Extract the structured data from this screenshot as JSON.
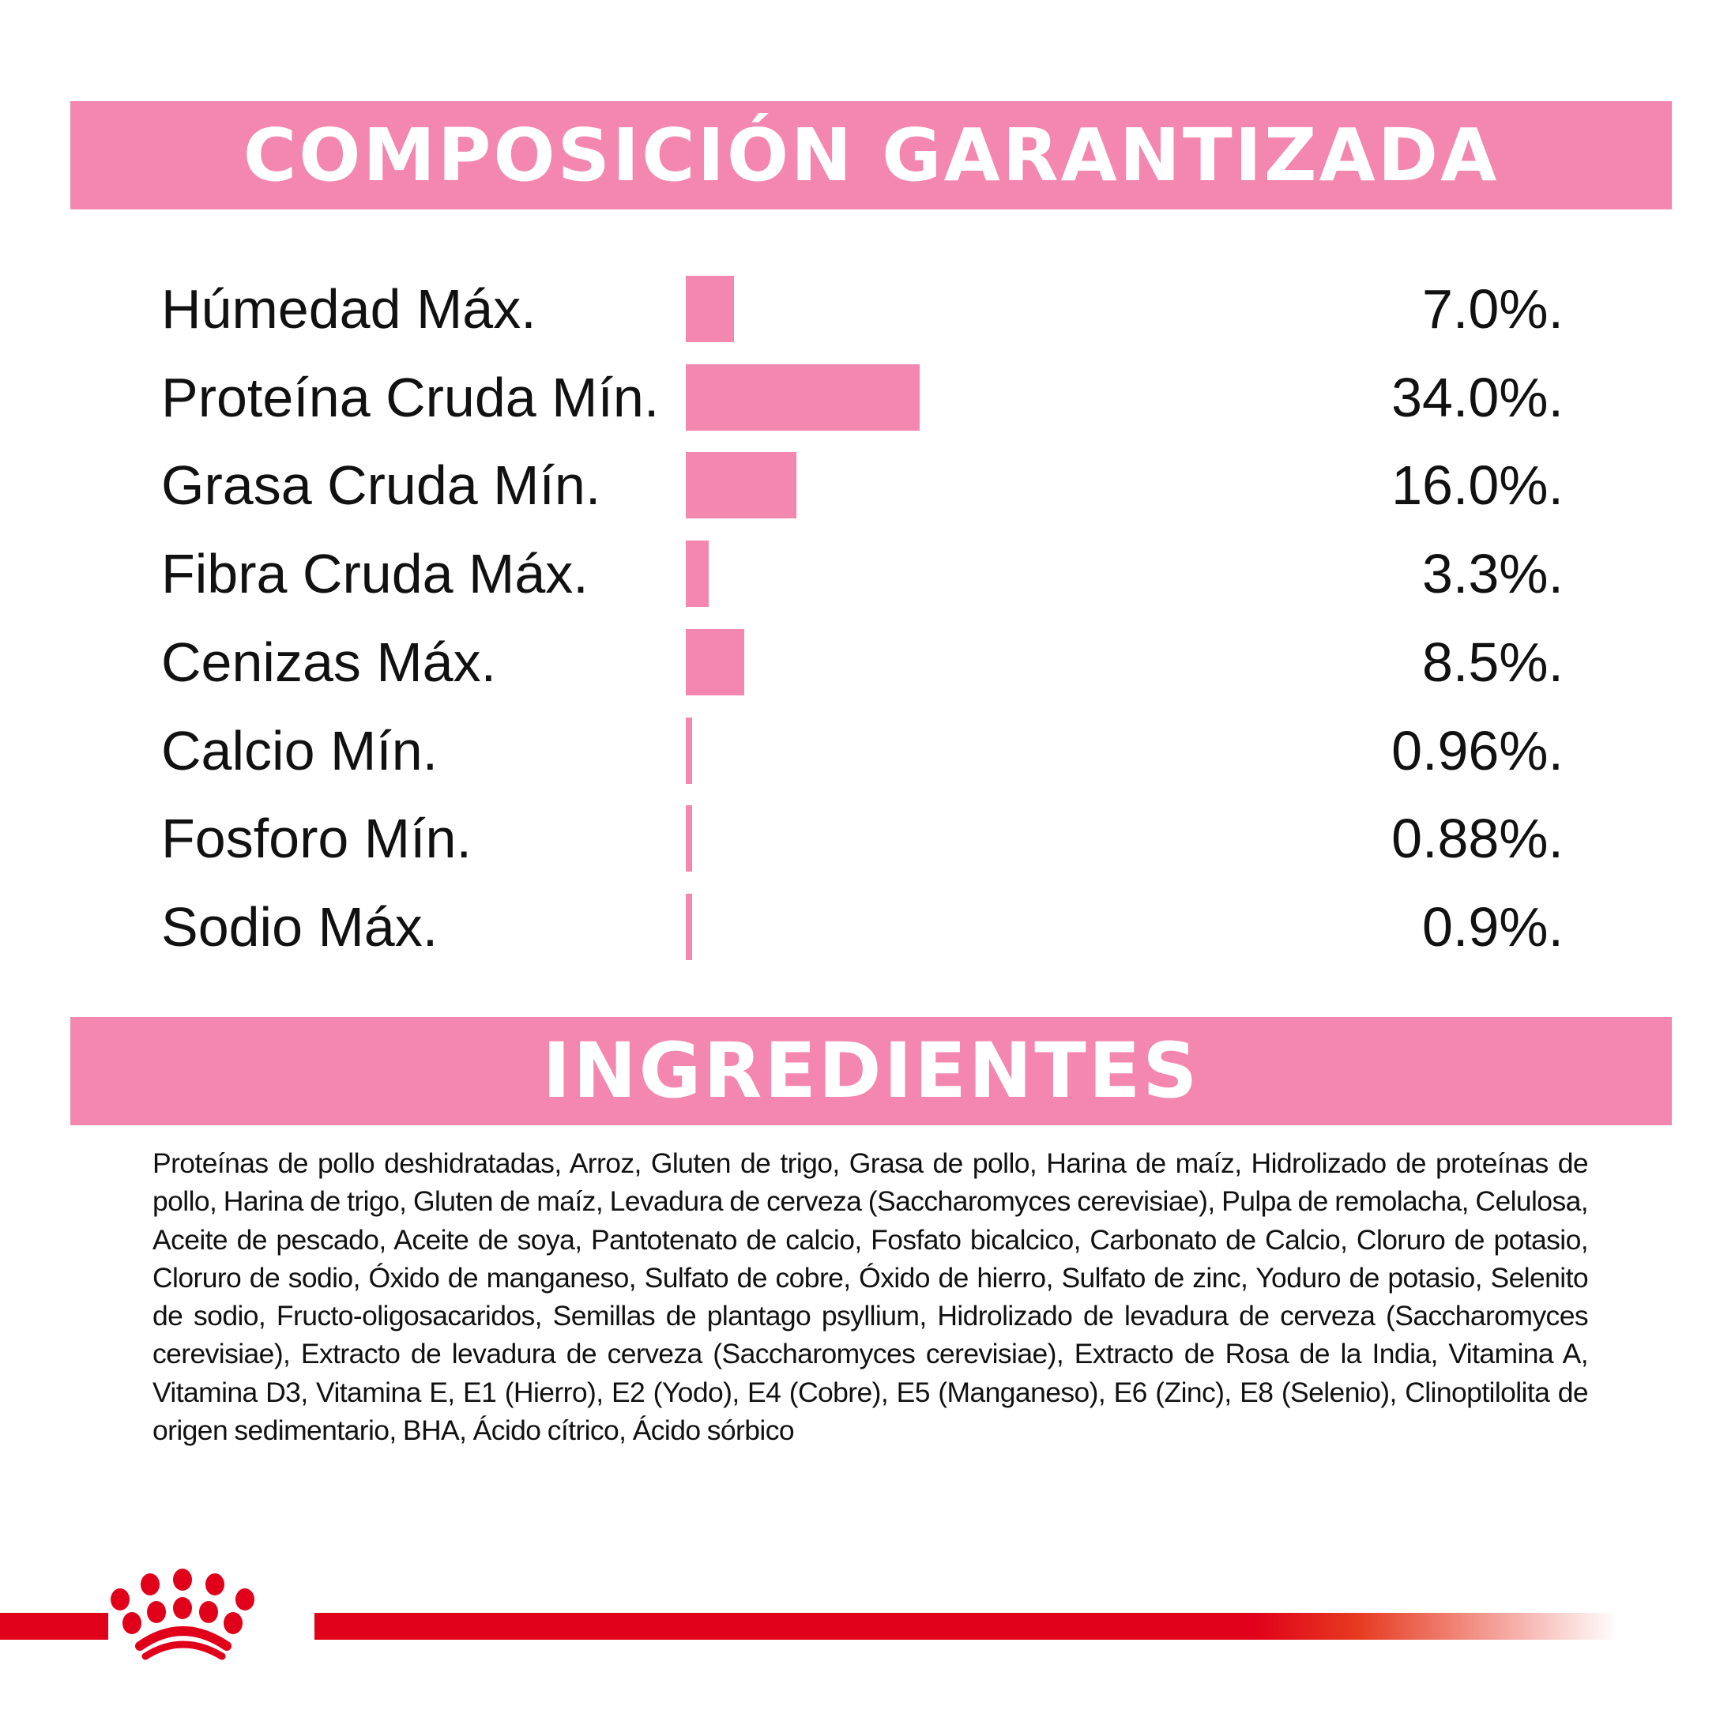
{
  "composition": {
    "title": "COMPOSICIÓN GARANTIZADA",
    "bar_color": "#f387b0",
    "rows": [
      {
        "label": "Húmedad Máx.",
        "percent": 7.0,
        "value": "7.0%."
      },
      {
        "label": "Proteína Cruda Mín.",
        "percent": 34.0,
        "value": "34.0%."
      },
      {
        "label": "Grasa Cruda Mín.",
        "percent": 16.0,
        "value": "16.0%."
      },
      {
        "label": "Fibra Cruda Máx.",
        "percent": 3.3,
        "value": "3.3%."
      },
      {
        "label": "Cenizas Máx.",
        "percent": 8.5,
        "value": "8.5%."
      },
      {
        "label": "Calcio Mín.",
        "percent": 0.96,
        "value": "0.96%."
      },
      {
        "label": "Fosforo Mín.",
        "percent": 0.88,
        "value": "0.88%."
      },
      {
        "label": "Sodio Máx.",
        "percent": 0.9,
        "value": "0.9%."
      }
    ]
  },
  "ingredients": {
    "title": "INGREDIENTES",
    "text": "Proteínas de pollo deshidratadas, Arroz, Gluten de trigo, Grasa de pollo, Harina de maíz, Hidrolizado de proteínas de pollo, Harina de trigo, Gluten de maíz, Levadura de cerveza (Saccharomyces cerevisiae), Pulpa de remolacha, Celulosa, Aceite de pescado, Aceite de soya, Pantotenato de calcio, Fosfato bicalcico, Carbonato de Calcio, Cloruro de potasio, Cloruro de sodio, Óxido de manganeso, Sulfato de cobre, Óxido de hierro, Sulfato de zinc, Yoduro de potasio, Selenito de sodio, Fructo-oligosacaridos, Semillas de plantago psyllium, Hidrolizado de levadura de cerveza (Saccharomyces cerevisiae), Extracto de levadura de cerveza (Saccharomyces cerevisiae), Extracto de Rosa de la India, Vitamina A, Vitamina D3, Vitamina E, E1 (Hierro), E2 (Yodo), E4 (Cobre), E5 (Manganeso), E6 (Zinc), E8 (Selenio), Clinoptilolita de origen sedimentario, BHA, Ácido cítrico, Ácido sórbico"
  },
  "footer": {
    "logo": "crown-logo",
    "brand_color": "#e1001a"
  }
}
